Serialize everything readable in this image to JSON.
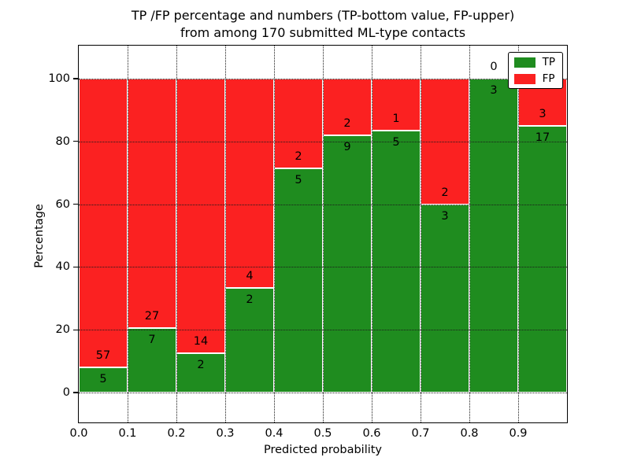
{
  "chart_data": {
    "type": "bar",
    "subtype": "stacked-percentage-histogram",
    "title_lines": [
      "TP /FP percentage and numbers (TP-bottom value, FP-upper)",
      "from among 170 submitted ML-type contacts"
    ],
    "xlabel": "Predicted probability",
    "ylabel": "Percentage",
    "total_contacts_in_title": 170,
    "bin_starts": [
      0.0,
      0.1,
      0.2,
      0.3,
      0.4,
      0.5,
      0.6,
      0.7,
      0.8,
      0.9
    ],
    "bin_width": 0.1,
    "series": [
      {
        "name": "TP",
        "position": "bottom",
        "color": "#1f8c1f",
        "counts": [
          5,
          7,
          2,
          2,
          5,
          9,
          5,
          3,
          3,
          17
        ]
      },
      {
        "name": "FP",
        "position": "top",
        "color": "#fb2121",
        "counts": [
          57,
          27,
          14,
          4,
          2,
          2,
          1,
          2,
          0,
          3
        ]
      }
    ],
    "tp_percentages": [
      8.1,
      20.6,
      12.5,
      33.3,
      71.4,
      81.8,
      83.3,
      60.0,
      100.0,
      85.0
    ],
    "bar_total_percentage": 100,
    "xticks": [
      "0.0",
      "0.1",
      "0.2",
      "0.3",
      "0.4",
      "0.5",
      "0.6",
      "0.7",
      "0.8",
      "0.9"
    ],
    "yticks": [
      0,
      20,
      40,
      60,
      80,
      100
    ],
    "xlim": [
      0.0,
      1.0
    ],
    "ylim": [
      -9.5,
      110.5
    ],
    "grid": "dotted-both-axes",
    "bar_edge_color": "#ffffff",
    "legend": {
      "position": "upper-right",
      "entries": [
        {
          "label": "TP",
          "color": "#1f8c1f"
        },
        {
          "label": "FP",
          "color": "#fb2121"
        }
      ]
    }
  }
}
